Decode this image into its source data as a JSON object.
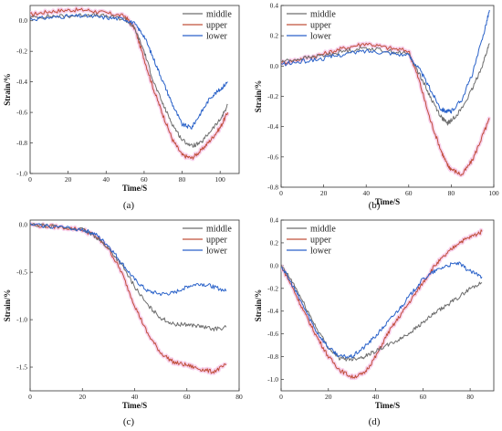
{
  "colors": {
    "middle": "#6e6e6e",
    "upper": "#c0503a",
    "lower": "#2a62c9",
    "halo": "#f6c6e8"
  },
  "chart_data": [
    {
      "id": "a",
      "type": "line",
      "caption": "(a)",
      "xlabel": "Time/S",
      "ylabel": "Strain/%",
      "xlim": [
        0,
        110
      ],
      "ylim": [
        -1.0,
        0.1
      ],
      "xticks": [
        "0",
        "20",
        "40",
        "60",
        "80",
        "100"
      ],
      "yticks": [
        "0.0",
        "-0.2",
        "-0.4",
        "-0.6",
        "-0.8",
        "-1.0"
      ],
      "legend_position": "top-right",
      "series": [
        {
          "name": "middle",
          "x": [
            0,
            10,
            20,
            30,
            40,
            50,
            55,
            60,
            65,
            70,
            75,
            80,
            85,
            90,
            95,
            100,
            104
          ],
          "y": [
            0.02,
            0.03,
            0.03,
            0.04,
            0.03,
            0.01,
            -0.05,
            -0.2,
            -0.4,
            -0.55,
            -0.68,
            -0.78,
            -0.82,
            -0.8,
            -0.72,
            -0.65,
            -0.55
          ]
        },
        {
          "name": "upper",
          "x": [
            0,
            10,
            20,
            30,
            40,
            50,
            55,
            60,
            65,
            70,
            75,
            80,
            85,
            90,
            95,
            100,
            104
          ],
          "y": [
            0.04,
            0.06,
            0.07,
            0.07,
            0.05,
            0.03,
            -0.05,
            -0.25,
            -0.45,
            -0.62,
            -0.78,
            -0.88,
            -0.9,
            -0.85,
            -0.78,
            -0.7,
            -0.6
          ]
        },
        {
          "name": "lower",
          "x": [
            0,
            10,
            20,
            30,
            40,
            50,
            55,
            60,
            65,
            70,
            75,
            80,
            85,
            90,
            95,
            100,
            104
          ],
          "y": [
            0.01,
            0.02,
            0.03,
            0.03,
            0.02,
            0.01,
            -0.02,
            -0.1,
            -0.25,
            -0.4,
            -0.55,
            -0.68,
            -0.7,
            -0.6,
            -0.5,
            -0.45,
            -0.4
          ]
        }
      ]
    },
    {
      "id": "b",
      "type": "line",
      "caption": "(b)",
      "xlabel": "Time/S",
      "ylabel": "Strain/%",
      "xlim": [
        0,
        100
      ],
      "ylim": [
        -0.8,
        0.4
      ],
      "xticks": [
        "0",
        "20",
        "40",
        "60",
        "80",
        "100"
      ],
      "yticks": [
        "0.4",
        "0.2",
        "0.0",
        "-0.2",
        "-0.4",
        "-0.6",
        "-0.8"
      ],
      "legend_position": "top-left",
      "series": [
        {
          "name": "middle",
          "x": [
            0,
            10,
            20,
            30,
            40,
            50,
            60,
            65,
            70,
            75,
            78,
            80,
            85,
            90,
            95,
            98
          ],
          "y": [
            0.03,
            0.05,
            0.07,
            0.1,
            0.12,
            0.1,
            0.08,
            -0.05,
            -0.2,
            -0.33,
            -0.38,
            -0.36,
            -0.28,
            -0.15,
            0.02,
            0.15
          ]
        },
        {
          "name": "upper",
          "x": [
            0,
            10,
            20,
            30,
            40,
            50,
            60,
            65,
            70,
            75,
            78,
            80,
            85,
            90,
            95,
            98
          ],
          "y": [
            0.02,
            0.05,
            0.08,
            0.12,
            0.15,
            0.12,
            0.1,
            -0.1,
            -0.35,
            -0.55,
            -0.65,
            -0.68,
            -0.72,
            -0.62,
            -0.45,
            -0.35
          ]
        },
        {
          "name": "lower",
          "x": [
            0,
            10,
            20,
            30,
            40,
            50,
            60,
            65,
            70,
            75,
            78,
            80,
            85,
            90,
            95,
            98
          ],
          "y": [
            0.01,
            0.03,
            0.05,
            0.08,
            0.1,
            0.09,
            0.07,
            -0.02,
            -0.15,
            -0.28,
            -0.3,
            -0.3,
            -0.22,
            -0.05,
            0.2,
            0.37
          ]
        }
      ]
    },
    {
      "id": "c",
      "type": "line",
      "caption": "(c)",
      "xlabel": "Time/S",
      "ylabel": "Strain/%",
      "xlim": [
        0,
        80
      ],
      "ylim": [
        -1.75,
        0.05
      ],
      "xticks": [
        "0",
        "20",
        "40",
        "60",
        "80"
      ],
      "yticks": [
        "0.0",
        "-0.5",
        "-1.0",
        "-1.5"
      ],
      "legend_position": "top-right",
      "series": [
        {
          "name": "middle",
          "x": [
            0,
            10,
            20,
            25,
            30,
            35,
            40,
            45,
            50,
            55,
            60,
            65,
            70,
            75
          ],
          "y": [
            0,
            -0.02,
            -0.05,
            -0.12,
            -0.25,
            -0.42,
            -0.65,
            -0.85,
            -0.98,
            -1.05,
            -1.05,
            -1.07,
            -1.1,
            -1.08
          ]
        },
        {
          "name": "upper",
          "x": [
            0,
            10,
            20,
            25,
            30,
            35,
            40,
            45,
            50,
            55,
            60,
            65,
            70,
            75
          ],
          "y": [
            0,
            -0.02,
            -0.05,
            -0.12,
            -0.25,
            -0.5,
            -0.85,
            -1.15,
            -1.35,
            -1.45,
            -1.48,
            -1.52,
            -1.55,
            -1.48
          ]
        },
        {
          "name": "lower",
          "x": [
            0,
            10,
            20,
            25,
            30,
            35,
            40,
            45,
            50,
            55,
            60,
            65,
            70,
            75
          ],
          "y": [
            0,
            -0.02,
            -0.05,
            -0.1,
            -0.22,
            -0.4,
            -0.58,
            -0.7,
            -0.73,
            -0.72,
            -0.65,
            -0.62,
            -0.65,
            -0.7
          ]
        }
      ]
    },
    {
      "id": "d",
      "type": "line",
      "caption": "(d)",
      "xlabel": "Time/S",
      "ylabel": "Strain/%",
      "xlim": [
        0,
        90
      ],
      "ylim": [
        -1.1,
        0.4
      ],
      "xticks": [
        "0",
        "20",
        "40",
        "60",
        "80"
      ],
      "yticks": [
        "0.4",
        "0.2",
        "0.0",
        "-0.2",
        "-0.4",
        "-0.6",
        "-0.8",
        "-1.0"
      ],
      "legend_position": "top-left",
      "series": [
        {
          "name": "middle",
          "x": [
            0,
            5,
            10,
            15,
            20,
            25,
            30,
            35,
            40,
            45,
            50,
            55,
            60,
            65,
            70,
            75,
            80,
            85
          ],
          "y": [
            0,
            -0.15,
            -0.35,
            -0.55,
            -0.72,
            -0.82,
            -0.82,
            -0.8,
            -0.75,
            -0.7,
            -0.65,
            -0.58,
            -0.5,
            -0.42,
            -0.35,
            -0.28,
            -0.2,
            -0.15
          ]
        },
        {
          "name": "upper",
          "x": [
            0,
            5,
            10,
            15,
            20,
            25,
            30,
            35,
            40,
            45,
            50,
            55,
            60,
            65,
            70,
            75,
            80,
            85
          ],
          "y": [
            0,
            -0.2,
            -0.42,
            -0.62,
            -0.8,
            -0.92,
            -0.98,
            -0.95,
            -0.8,
            -0.6,
            -0.45,
            -0.3,
            -0.15,
            0,
            0.1,
            0.2,
            0.25,
            0.3
          ]
        },
        {
          "name": "lower",
          "x": [
            0,
            5,
            10,
            15,
            20,
            25,
            30,
            35,
            40,
            45,
            50,
            55,
            60,
            65,
            70,
            75,
            80,
            85
          ],
          "y": [
            0,
            -0.18,
            -0.38,
            -0.58,
            -0.72,
            -0.8,
            -0.8,
            -0.72,
            -0.62,
            -0.5,
            -0.38,
            -0.25,
            -0.12,
            -0.05,
            0,
            0.02,
            -0.05,
            -0.1
          ]
        }
      ]
    }
  ]
}
